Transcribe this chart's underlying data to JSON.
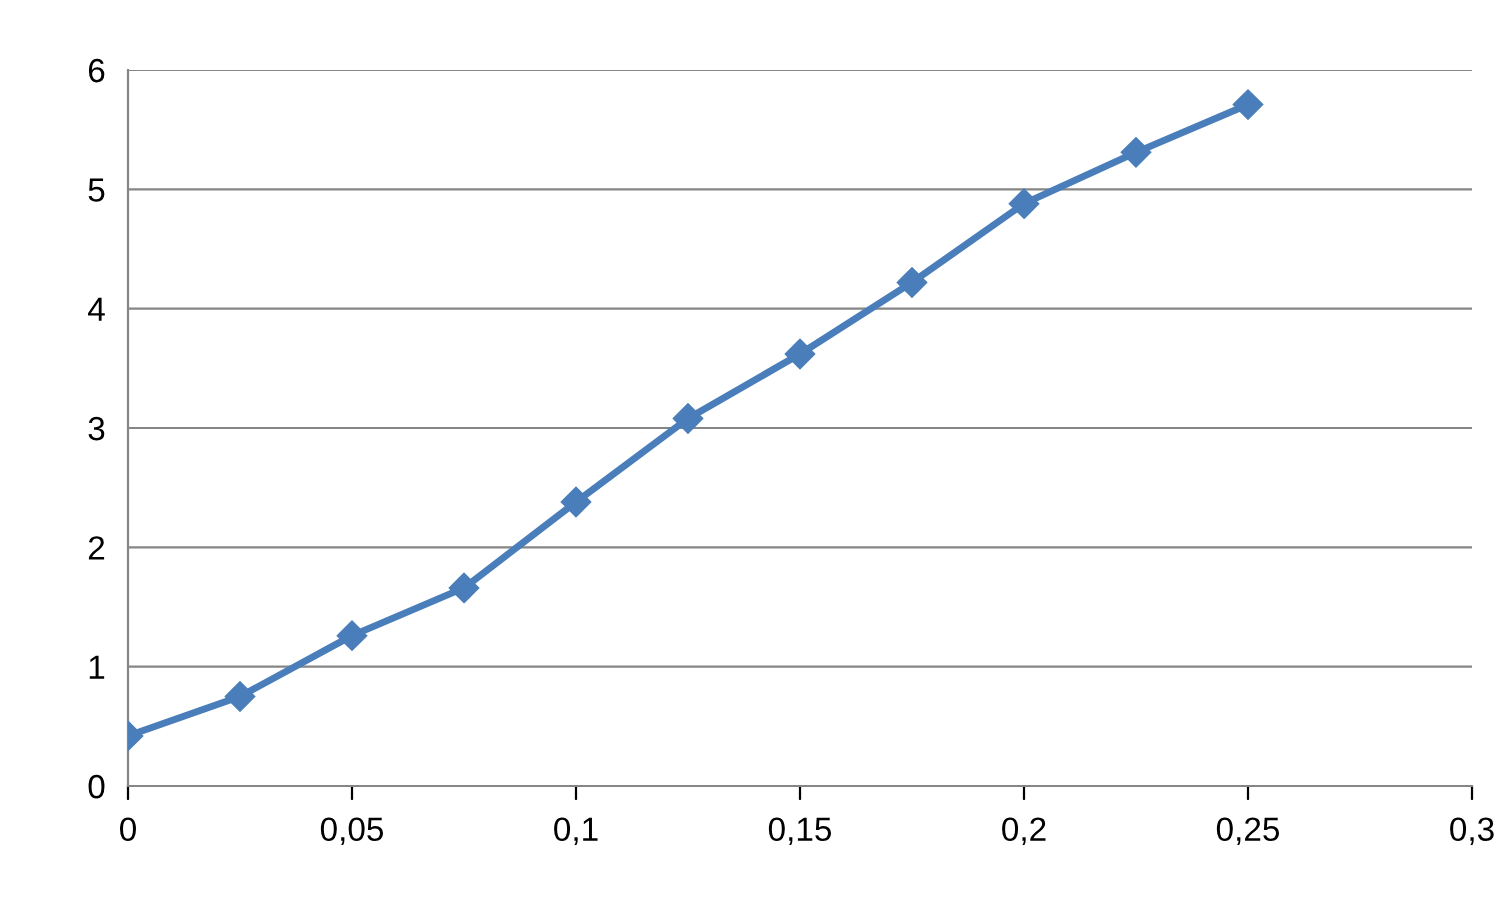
{
  "chart_data": {
    "type": "line",
    "x": [
      0,
      0.025,
      0.05,
      0.075,
      0.1,
      0.125,
      0.15,
      0.175,
      0.2,
      0.225,
      0.25
    ],
    "series": [
      {
        "color": "#4a7ebb",
        "values": [
          0.42,
          0.75,
          1.26,
          1.66,
          2.38,
          3.08,
          3.62,
          4.22,
          4.88,
          5.31,
          5.71
        ]
      }
    ],
    "xlim": [
      0,
      0.3
    ],
    "xticks": [
      0,
      {
        "value": 0.05,
        "label": "0,05"
      },
      {
        "value": 0.1,
        "label": "0,1"
      },
      {
        "value": 0.15,
        "label": "0,15"
      },
      {
        "value": 0.2,
        "label": "0,2"
      },
      {
        "value": 0.25,
        "label": "0,25"
      },
      {
        "value": 0.3,
        "label": "0,3"
      }
    ],
    "ylim": [
      0,
      6
    ],
    "yticks": [
      0,
      1,
      2,
      3,
      4,
      5,
      6
    ],
    "grid": "y",
    "marker": "diamond",
    "line_style": "solid",
    "legend": false
  }
}
